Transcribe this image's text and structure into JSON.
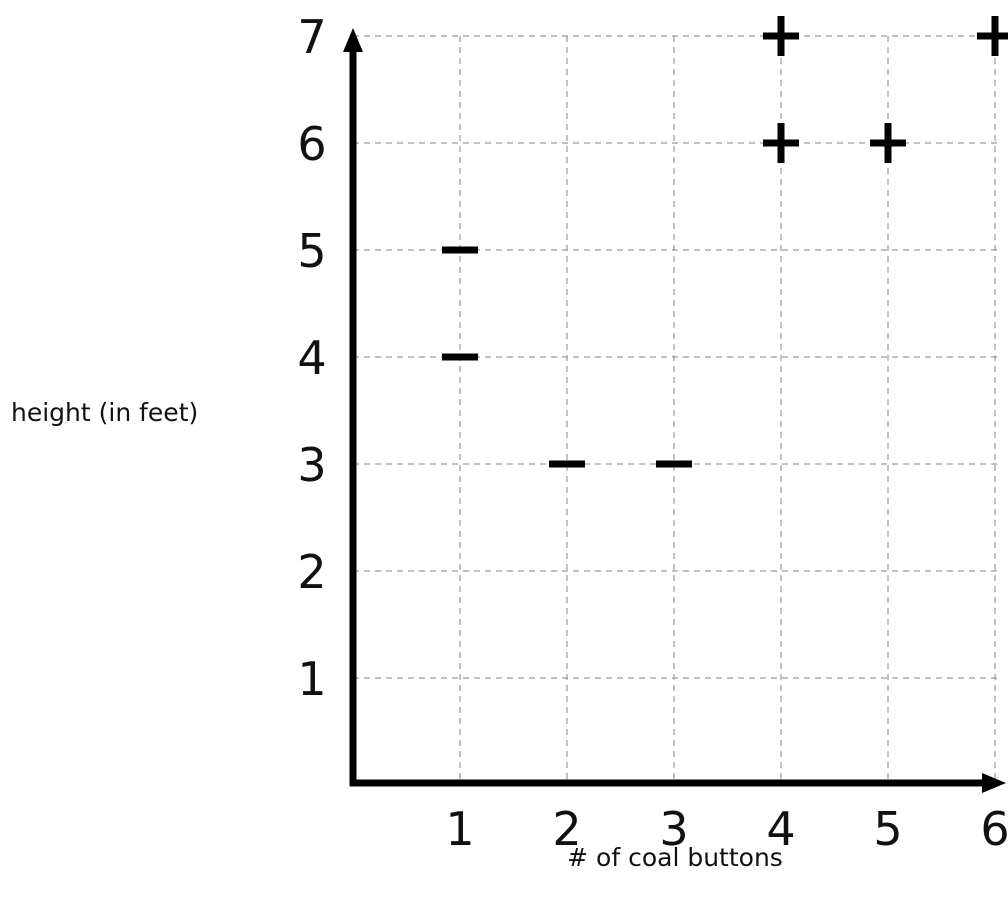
{
  "chart_data": {
    "type": "scatter",
    "xlabel": "# of coal buttons",
    "ylabel": "height (in feet)",
    "x_ticks": [
      "1",
      "2",
      "3",
      "4",
      "5",
      "6"
    ],
    "y_ticks": [
      "1",
      "2",
      "3",
      "4",
      "5",
      "6",
      "7"
    ],
    "xlim": [
      0,
      6
    ],
    "ylim": [
      0,
      7
    ],
    "grid": true,
    "points": [
      {
        "x": 1,
        "y": 5,
        "label": "-"
      },
      {
        "x": 1,
        "y": 4,
        "label": "-"
      },
      {
        "x": 2,
        "y": 3,
        "label": "-"
      },
      {
        "x": 3,
        "y": 3,
        "label": "-"
      },
      {
        "x": 4,
        "y": 7,
        "label": "+"
      },
      {
        "x": 4,
        "y": 6,
        "label": "+"
      },
      {
        "x": 5,
        "y": 6,
        "label": "+"
      },
      {
        "x": 6,
        "y": 7,
        "label": "+"
      }
    ]
  }
}
